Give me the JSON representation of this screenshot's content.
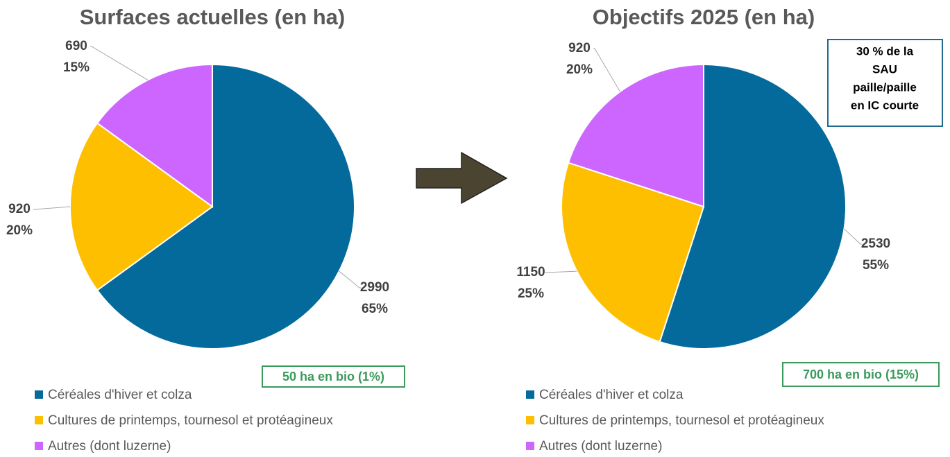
{
  "chart_data": [
    {
      "type": "pie",
      "title": "Surfaces actuelles (en ha)",
      "categories": [
        "Céréales d'hiver et colza",
        "Cultures de printemps, tournesol et protéagineux",
        "Autres (dont luzerne)"
      ],
      "values": [
        2990,
        920,
        690
      ],
      "percent_labels": [
        "65%",
        "20%",
        "15%"
      ],
      "colors": [
        "#046a9c",
        "#fdbf00",
        "#cc66ff"
      ],
      "annotation": "50 ha en bio (1%)"
    },
    {
      "type": "pie",
      "title": "Objectifs 2025 (en ha)",
      "categories": [
        "Céréales d'hiver et colza",
        "Cultures de printemps, tournesol et protéagineux",
        "Autres (dont luzerne)"
      ],
      "values": [
        2530,
        1150,
        920
      ],
      "percent_labels": [
        "55%",
        "25%",
        "20%"
      ],
      "colors": [
        "#046a9c",
        "#fdbf00",
        "#cc66ff"
      ],
      "annotation": "700 ha en bio (15%)",
      "note_lines": [
        "30 % de la",
        "SAU",
        "paille/paille",
        "en IC courte"
      ]
    }
  ]
}
